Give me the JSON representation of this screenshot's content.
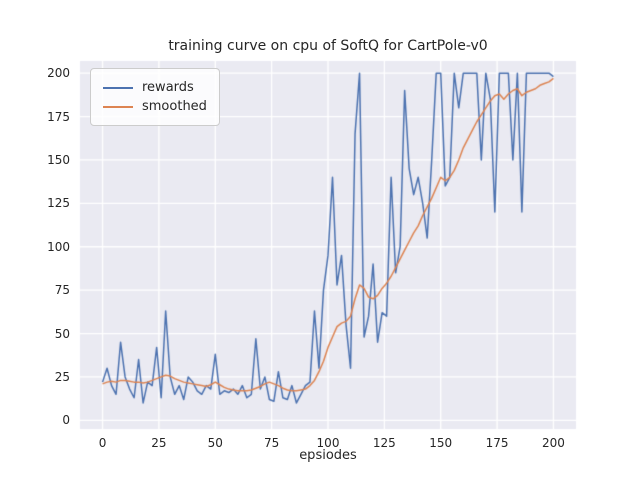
{
  "chart_data": {
    "type": "line",
    "title": "training curve on cpu of SoftQ for CartPole-v0",
    "xlabel": "epsiodes",
    "ylabel": "",
    "xlim": [
      -10,
      210
    ],
    "ylim": [
      -5,
      207
    ],
    "x_ticks": [
      0,
      25,
      50,
      75,
      100,
      125,
      150,
      175,
      200
    ],
    "y_ticks": [
      0,
      25,
      50,
      75,
      100,
      125,
      150,
      175,
      200
    ],
    "grid": true,
    "legend_position": "upper left",
    "plot_bg": "#EAEAF2",
    "grid_color": "#FFFFFF",
    "text_color": "#262626",
    "x": [
      0,
      2,
      4,
      6,
      8,
      10,
      12,
      14,
      16,
      18,
      20,
      22,
      24,
      26,
      28,
      30,
      32,
      34,
      36,
      38,
      40,
      42,
      44,
      46,
      48,
      50,
      52,
      54,
      56,
      58,
      60,
      62,
      64,
      66,
      68,
      70,
      72,
      74,
      76,
      78,
      80,
      82,
      84,
      86,
      88,
      90,
      92,
      94,
      96,
      98,
      100,
      102,
      104,
      106,
      108,
      110,
      112,
      114,
      116,
      118,
      120,
      122,
      124,
      126,
      128,
      130,
      132,
      134,
      136,
      138,
      140,
      142,
      144,
      146,
      148,
      150,
      152,
      154,
      156,
      158,
      160,
      162,
      164,
      166,
      168,
      170,
      172,
      174,
      176,
      178,
      180,
      182,
      184,
      186,
      188,
      190,
      192,
      194,
      196,
      198,
      200
    ],
    "series": [
      {
        "name": "rewards",
        "color": "#4C72B0",
        "values": [
          22,
          30,
          20,
          15,
          45,
          25,
          18,
          13,
          35,
          10,
          22,
          20,
          42,
          13,
          63,
          25,
          15,
          20,
          12,
          25,
          22,
          17,
          15,
          20,
          18,
          38,
          15,
          17,
          16,
          18,
          15,
          20,
          13,
          15,
          47,
          18,
          25,
          12,
          11,
          28,
          13,
          12,
          20,
          10,
          15,
          20,
          22,
          63,
          30,
          75,
          95,
          140,
          78,
          95,
          55,
          30,
          165,
          200,
          48,
          60,
          90,
          45,
          62,
          60,
          140,
          85,
          100,
          190,
          145,
          130,
          140,
          125,
          105,
          150,
          200,
          200,
          135,
          140,
          200,
          180,
          200,
          200,
          200,
          200,
          150,
          200,
          185,
          120,
          200,
          200,
          200,
          150,
          200,
          120,
          200,
          200,
          200,
          200,
          200,
          200,
          198
        ]
      },
      {
        "name": "smoothed",
        "color": "#DD8452",
        "values": [
          21,
          22,
          22.5,
          22,
          23,
          23,
          22.5,
          22,
          22,
          21.5,
          22,
          23,
          24,
          25,
          26,
          25.5,
          24,
          23,
          22,
          21.5,
          21,
          20.5,
          20,
          19.5,
          20.5,
          22,
          20.5,
          19,
          18,
          17.5,
          17,
          17,
          17,
          17.5,
          18.5,
          19.5,
          21,
          22,
          21,
          20,
          18.5,
          17.5,
          17,
          17,
          17.5,
          18,
          20,
          23,
          28,
          34,
          42,
          48,
          54,
          56,
          57,
          60,
          70,
          78,
          76,
          71,
          70,
          72,
          76,
          79,
          83,
          88,
          93,
          98,
          103,
          108,
          112,
          118,
          123,
          128,
          134,
          140,
          138,
          140,
          144,
          150,
          157,
          162,
          167,
          172,
          176,
          180,
          184,
          187,
          188,
          185,
          188,
          190,
          191,
          187,
          189,
          190,
          191,
          193,
          194,
          195,
          197
        ]
      }
    ]
  }
}
